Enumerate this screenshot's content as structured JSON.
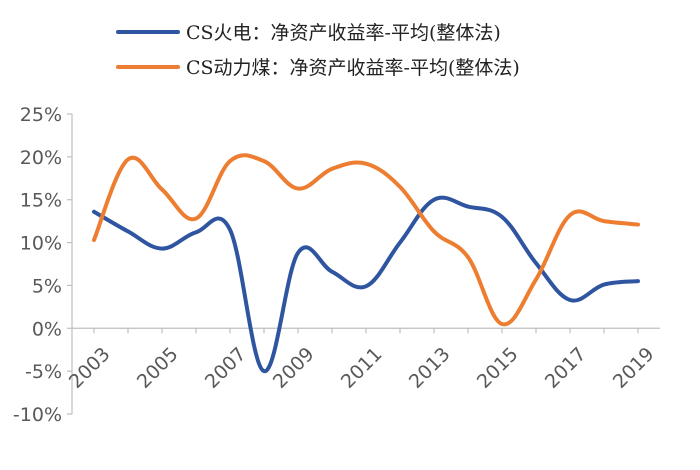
{
  "chart_data": {
    "type": "line",
    "x": [
      2003,
      2004,
      2005,
      2006,
      2007,
      2008,
      2009,
      2010,
      2011,
      2012,
      2013,
      2014,
      2015,
      2016,
      2017,
      2018,
      2019
    ],
    "x_tick_labels": [
      "2003",
      "2005",
      "2007",
      "2009",
      "2011",
      "2013",
      "2015",
      "2017",
      "2019"
    ],
    "y_tick_labels": [
      "25%",
      "20%",
      "15%",
      "10%",
      "5%",
      "0%",
      "-5%",
      "-10%"
    ],
    "ylim": [
      -10,
      25
    ],
    "y_unit": "%",
    "grid": false,
    "legend_position": "top",
    "series": [
      {
        "name": "CS火电：净资产收益率-平均(整体法)",
        "color": "#2F55A0",
        "values": [
          13.6,
          11.3,
          9.3,
          11.2,
          11.5,
          -5.0,
          8.8,
          6.6,
          4.9,
          10.0,
          15.0,
          14.2,
          13.0,
          7.6,
          3.3,
          5.1,
          5.5
        ]
      },
      {
        "name": "CS动力煤：净资产收益率-平均(整体法)",
        "color": "#ED7D31",
        "values": [
          10.3,
          19.7,
          16.2,
          12.8,
          19.5,
          19.5,
          16.3,
          18.6,
          19.2,
          16.5,
          11.3,
          8.3,
          0.5,
          5.7,
          13.2,
          12.5,
          12.1
        ]
      }
    ]
  }
}
